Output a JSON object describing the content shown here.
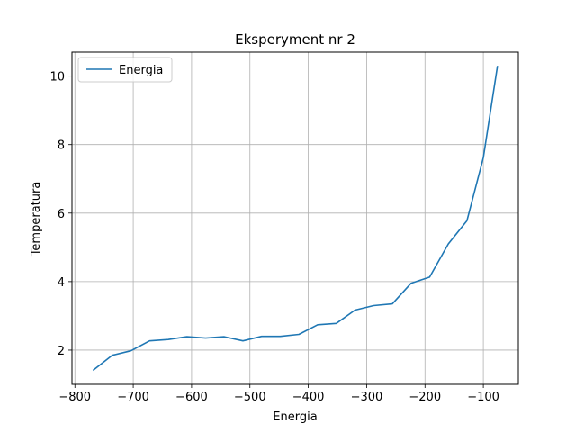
{
  "chart_data": {
    "type": "line",
    "title": "Eksperyment nr 2",
    "xlabel": "Energia",
    "ylabel": "Temperatura",
    "xlim": [
      -805,
      -40
    ],
    "ylim": [
      1.0,
      10.7
    ],
    "xticks": [
      -800,
      -700,
      -600,
      -500,
      -400,
      -300,
      -200,
      -100
    ],
    "xtick_labels": [
      "−800",
      "−700",
      "−600",
      "−500",
      "−400",
      "−300",
      "−200",
      "−100"
    ],
    "yticks": [
      2,
      4,
      6,
      8,
      10
    ],
    "ytick_labels": [
      "2",
      "4",
      "6",
      "8",
      "10"
    ],
    "grid": true,
    "legend_position": "upper-left",
    "series": [
      {
        "name": "Energia",
        "color": "#1f77b4",
        "x": [
          -768,
          -736,
          -704,
          -672,
          -640,
          -608,
          -576,
          -544,
          -512,
          -480,
          -448,
          -416,
          -384,
          -352,
          -320,
          -288,
          -256,
          -224,
          -192,
          -160,
          -128,
          -100,
          -76
        ],
        "y": [
          1.42,
          1.85,
          1.98,
          2.27,
          2.31,
          2.39,
          2.35,
          2.39,
          2.27,
          2.4,
          2.4,
          2.46,
          2.74,
          2.78,
          3.17,
          3.3,
          3.35,
          3.95,
          4.13,
          5.1,
          5.78,
          7.62,
          10.28
        ]
      }
    ]
  }
}
